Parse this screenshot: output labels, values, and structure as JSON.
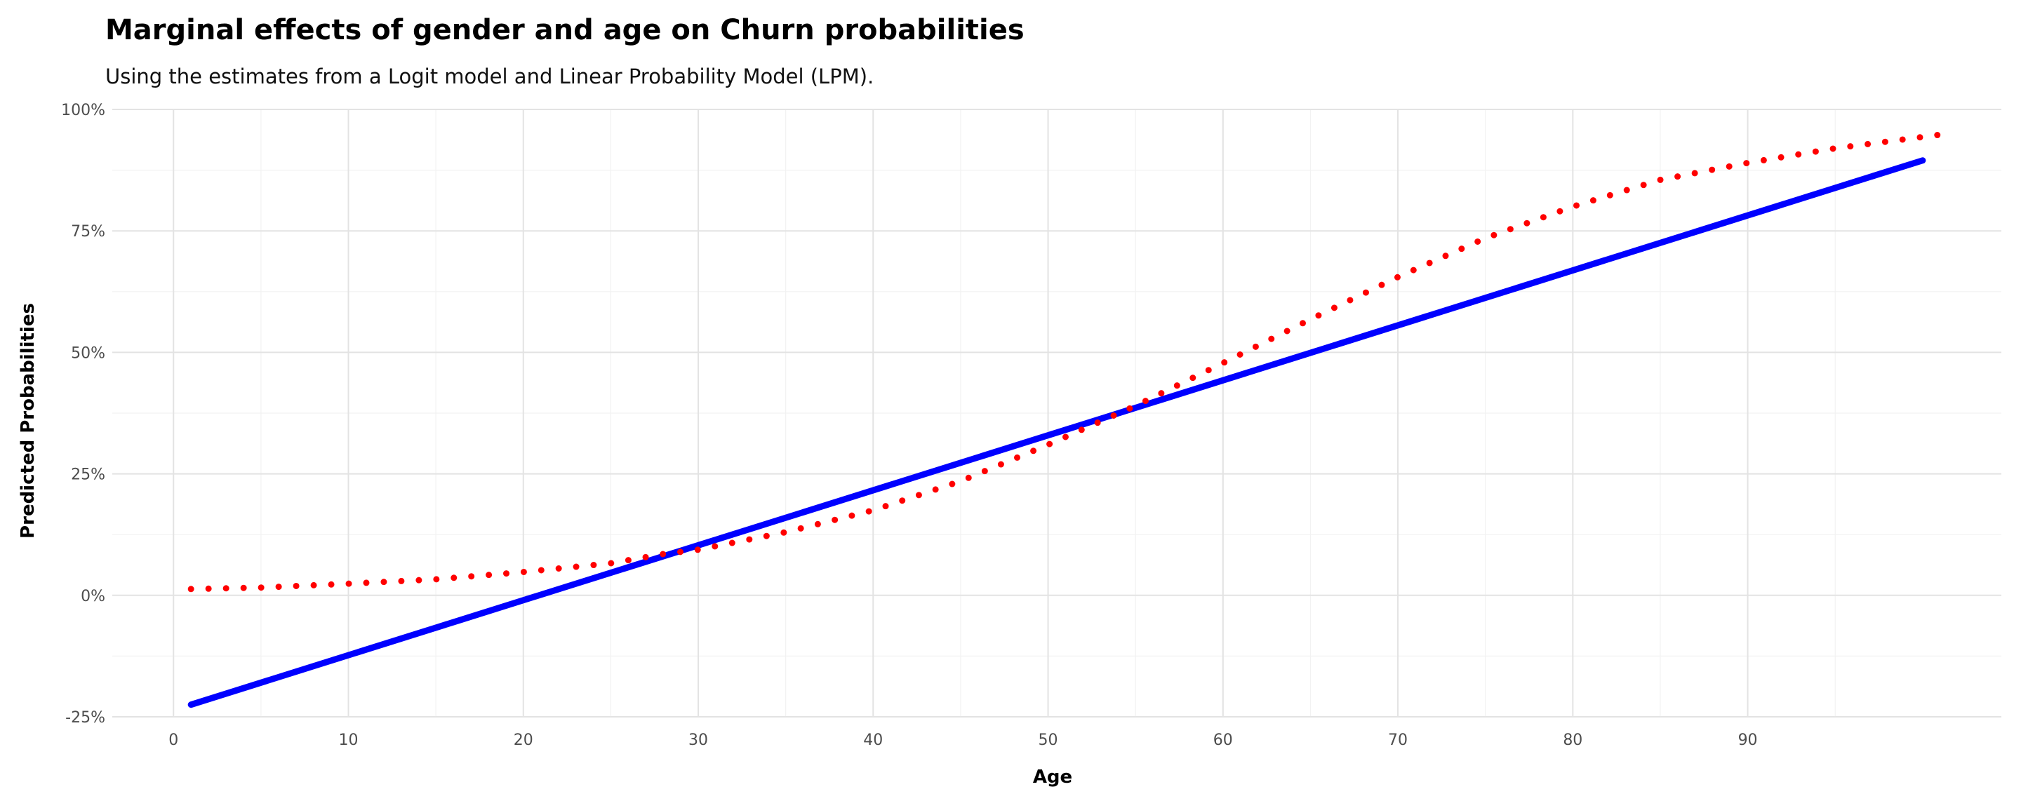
{
  "chart_data": {
    "type": "line",
    "title": "Marginal effects of gender and age on Churn probabilities",
    "subtitle": "Using the estimates from a Logit model and Linear Probability Model (LPM).",
    "xlabel": "Age",
    "ylabel": "Predicted Probabilities",
    "xlim": [
      -3.5,
      104.5
    ],
    "ylim": [
      -0.25,
      1.0
    ],
    "x_ticks": [
      0,
      10,
      20,
      30,
      40,
      50,
      60,
      70,
      80,
      90
    ],
    "x_tick_labels": [
      "0",
      "10",
      "20",
      "30",
      "40",
      "50",
      "60",
      "70",
      "80",
      "90"
    ],
    "y_ticks": [
      -0.25,
      0,
      0.25,
      0.5,
      0.75,
      1.0
    ],
    "y_tick_labels": [
      "-25%",
      "0%",
      "25%",
      "50%",
      "75%",
      "100%"
    ],
    "grid": true,
    "legend": "none",
    "series": [
      {
        "style": "line",
        "color": "#0000ff",
        "x": [
          1,
          100
        ],
        "y": [
          -0.225,
          0.895
        ]
      },
      {
        "style": "dots",
        "color": "#ff0000",
        "x": [
          1,
          5,
          10,
          15,
          20,
          25,
          28,
          30,
          35,
          40,
          45,
          50,
          55,
          60,
          65,
          70,
          75,
          80,
          85,
          90,
          95,
          101
        ],
        "y": [
          0.013,
          0.016,
          0.024,
          0.033,
          0.048,
          0.066,
          0.085,
          0.094,
          0.13,
          0.175,
          0.235,
          0.31,
          0.39,
          0.478,
          0.568,
          0.655,
          0.735,
          0.8,
          0.855,
          0.89,
          0.92,
          0.948
        ]
      }
    ]
  }
}
